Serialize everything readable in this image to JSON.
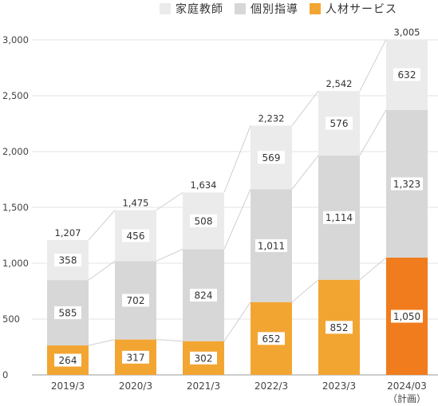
{
  "legend": {
    "items": [
      {
        "label": "家庭教師",
        "color": "#ebebeb"
      },
      {
        "label": "個別指導",
        "color": "#d7d7d7"
      },
      {
        "label": "人材サービス",
        "color": "#f3a532"
      }
    ]
  },
  "chart_data": {
    "type": "bar",
    "stacked": true,
    "categories": [
      "2019/3",
      "2020/3",
      "2021/3",
      "2022/3",
      "2023/3",
      "2024/03"
    ],
    "category_notes": [
      "",
      "",
      "",
      "",
      "",
      "（計画）"
    ],
    "series": [
      {
        "name": "人材サービス",
        "values": [
          264,
          317,
          302,
          652,
          852,
          1050
        ]
      },
      {
        "name": "個別指導",
        "values": [
          585,
          702,
          824,
          1011,
          1114,
          1323
        ]
      },
      {
        "name": "家庭教師",
        "values": [
          358,
          456,
          508,
          569,
          576,
          632
        ]
      }
    ],
    "totals": [
      "1,207",
      "1,475",
      "1,634",
      "2,232",
      "2,542",
      "3,005"
    ],
    "value_labels": [
      [
        "264",
        "317",
        "302",
        "652",
        "852",
        "1,050"
      ],
      [
        "585",
        "702",
        "824",
        "1,011",
        "1,114",
        "1,323"
      ],
      [
        "358",
        "456",
        "508",
        "569",
        "576",
        "632"
      ]
    ],
    "ylim": [
      0,
      3000
    ],
    "yticks": [
      0,
      500,
      1000,
      1500,
      2000,
      2500,
      3000
    ],
    "ytick_labels": [
      "0",
      "500",
      "1,000",
      "1,500",
      "2,000",
      "2,500",
      "3,000"
    ],
    "colors": {
      "jinzai": "#f3a532",
      "jinzai_plan": "#f07c1e",
      "kobetsu": "#d7d7d7",
      "katei": "#ebebeb",
      "connector": "#cfcfcf"
    },
    "grid": true,
    "legend_position": "top"
  }
}
